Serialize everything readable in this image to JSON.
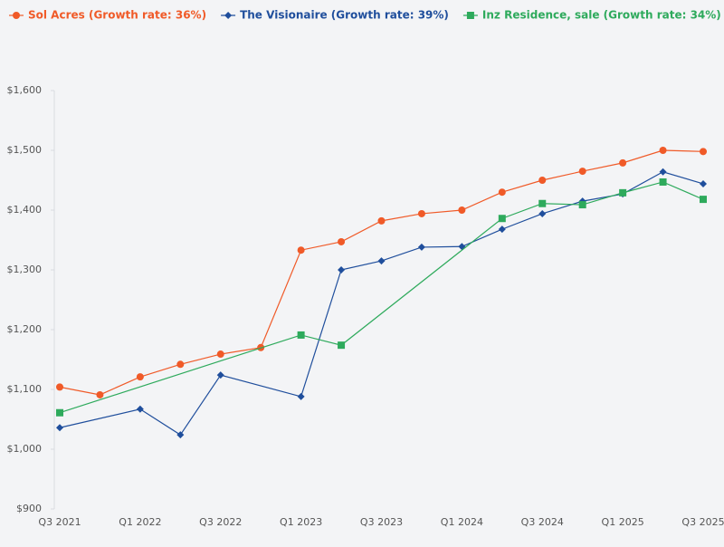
{
  "chart_data": {
    "type": "line",
    "categories": [
      "Q3 2021",
      null,
      "Q1 2022",
      null,
      "Q3 2022",
      null,
      "Q1 2023",
      null,
      "Q3 2023",
      null,
      "Q1 2024",
      null,
      "Q3 2024",
      null,
      "Q1 2025",
      null,
      "Q3 2025"
    ],
    "series": [
      {
        "name": "Sol Acres (Growth rate: 36%)",
        "color": "#f05a28",
        "marker": "circle",
        "values": [
          1104,
          1091,
          1121,
          1142,
          1159,
          1170,
          1333,
          1347,
          1382,
          1394,
          1400,
          1430,
          1450,
          1465,
          1479,
          1500,
          1498
        ]
      },
      {
        "name": "The Visionaire (Growth rate: 39%)",
        "color": "#1f4e9c",
        "marker": "diamond",
        "values": [
          1036,
          null,
          1067,
          1024,
          1124,
          null,
          1088,
          1300,
          1315,
          1338,
          1339,
          1368,
          1394,
          1415,
          1427,
          1464,
          1444
        ]
      },
      {
        "name": "Inz Residence, sale (Growth rate: 34%)",
        "color": "#2eaa5c",
        "marker": "square",
        "values": [
          1061,
          null,
          null,
          null,
          null,
          null,
          1191,
          1174,
          null,
          null,
          null,
          1386,
          1411,
          1409,
          1429,
          1447,
          1418
        ]
      }
    ],
    "ylim": [
      900,
      1600
    ],
    "yticks": [
      {
        "value": 900,
        "label": "$900"
      },
      {
        "value": 1000,
        "label": "$1,000"
      },
      {
        "value": 1100,
        "label": "$1,100"
      },
      {
        "value": 1200,
        "label": "$1,200"
      },
      {
        "value": 1300,
        "label": "$1,300"
      },
      {
        "value": 1400,
        "label": "$1,400"
      },
      {
        "value": 1500,
        "label": "$1,500"
      },
      {
        "value": 1600,
        "label": "$1,600"
      }
    ],
    "grid": false,
    "legend": "top"
  }
}
